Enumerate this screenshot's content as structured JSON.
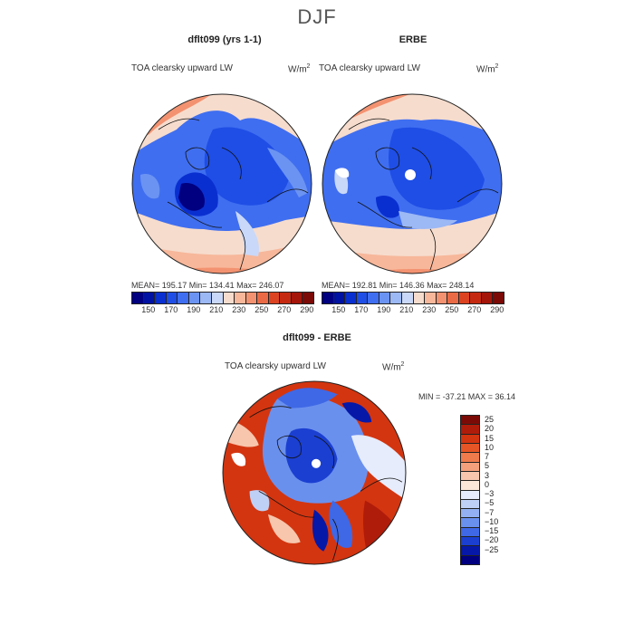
{
  "title": "DJF",
  "panels": [
    {
      "name": "dflt099 (yrs 1-1)",
      "variable": "TOA clearsky upward LW",
      "units": "W/m",
      "units_sup": "2",
      "stats": "MEAN= 195.17   Min= 134.41   Max= 246.07"
    },
    {
      "name": "ERBE",
      "variable": "TOA clearsky upward LW",
      "units": "W/m",
      "units_sup": "2",
      "stats": "MEAN= 192.81   Min= 146.36   Max= 248.14"
    }
  ],
  "colorbar_abs": {
    "ticks": [
      "150",
      "170",
      "190",
      "210",
      "230",
      "250",
      "270",
      "290"
    ],
    "colors": [
      "#000080",
      "#0012a3",
      "#0a2fd0",
      "#1f4ee6",
      "#3f6ef0",
      "#6b93f2",
      "#9cb8f5",
      "#c9d8f8",
      "#f6dccd",
      "#f7b79a",
      "#f39270",
      "#ea6a45",
      "#dc4421",
      "#c52a10",
      "#a4160a",
      "#7b0a06"
    ]
  },
  "difference": {
    "name": "dflt099 - ERBE",
    "variable": "TOA clearsky upward LW",
    "units": "W/m",
    "units_sup": "2",
    "stats": "MIN = -37.21  MAX =  36.14",
    "ticks": [
      "25",
      "20",
      "15",
      "10",
      "7",
      "5",
      "3",
      "0",
      "−3",
      "−5",
      "−7",
      "−10",
      "−15",
      "−20",
      "−25"
    ],
    "colors": [
      "#7b0a06",
      "#b01c0a",
      "#d33510",
      "#e65525",
      "#ef7a4c",
      "#f4a07c",
      "#f7c6ad",
      "#fbe6da",
      "#e6ecfb",
      "#bfd0f6",
      "#93b1f2",
      "#6a90ee",
      "#3f68e6",
      "#1b3fd1",
      "#0618a8",
      "#000080"
    ]
  }
}
